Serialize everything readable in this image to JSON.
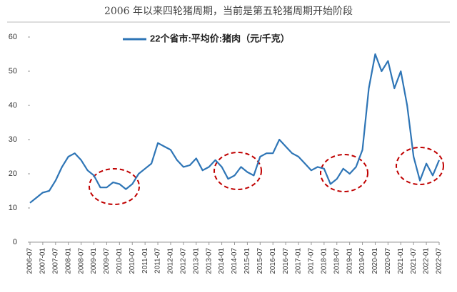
{
  "chart_data": {
    "type": "line",
    "title": "2006 年以来四轮猪周期，当前是第五轮猪周期开始阶段",
    "x": [
      "2006-07",
      "2006-10",
      "2007-01",
      "2007-04",
      "2007-07",
      "2007-10",
      "2008-01",
      "2008-04",
      "2008-07",
      "2008-10",
      "2009-01",
      "2009-04",
      "2009-07",
      "2009-10",
      "2010-01",
      "2010-04",
      "2010-07",
      "2010-10",
      "2011-01",
      "2011-04",
      "2011-07",
      "2011-10",
      "2012-01",
      "2012-04",
      "2012-07",
      "2012-10",
      "2013-01",
      "2013-04",
      "2013-07",
      "2013-10",
      "2014-01",
      "2014-04",
      "2014-07",
      "2014-10",
      "2015-01",
      "2015-04",
      "2015-07",
      "2015-10",
      "2016-01",
      "2016-04",
      "2016-07",
      "2016-10",
      "2017-01",
      "2017-04",
      "2017-07",
      "2017-10",
      "2018-01",
      "2018-04",
      "2018-07",
      "2018-10",
      "2019-01",
      "2019-04",
      "2019-07",
      "2019-10",
      "2020-01",
      "2020-04",
      "2020-07",
      "2020-10",
      "2021-01",
      "2021-04",
      "2021-07",
      "2021-10",
      "2022-01",
      "2022-04",
      "2022-07"
    ],
    "series": [
      {
        "name": "22个省市:平均价:猪肉（元/千克）",
        "color": "#2e75b6",
        "values": [
          11.5,
          13,
          14.5,
          15,
          18,
          22,
          25,
          26,
          24,
          21,
          19.5,
          16,
          16,
          17.5,
          17,
          15.5,
          17,
          20,
          21.5,
          23,
          29,
          28,
          27,
          24,
          22,
          22.5,
          24.5,
          21,
          22,
          24,
          22,
          18.5,
          19.5,
          22,
          20.5,
          19.5,
          25,
          26,
          26,
          30,
          28,
          26,
          25,
          23,
          21,
          22,
          21.5,
          17,
          18.5,
          21.5,
          20,
          22,
          27,
          45,
          55,
          50,
          53,
          45,
          50,
          40,
          25,
          18,
          23,
          19.5,
          24
        ]
      }
    ],
    "xlim": [
      "2006-07",
      "2022-07"
    ],
    "xticks": [
      "2006-07",
      "2007-01",
      "2007-07",
      "2008-01",
      "2008-07",
      "2009-01",
      "2009-07",
      "2010-01",
      "2010-07",
      "2011-01",
      "2011-07",
      "2012-01",
      "2012-07",
      "2013-01",
      "2013-07",
      "2014-01",
      "2014-07",
      "2015-01",
      "2015-07",
      "2016-01",
      "2016-07",
      "2017-01",
      "2017-07",
      "2018-01",
      "2018-07",
      "2019-01",
      "2019-07",
      "2020-01",
      "2020-07",
      "2021-01",
      "2021-07",
      "2022-01",
      "2022-07"
    ],
    "ylim": [
      0,
      60
    ],
    "yticks": [
      0,
      10,
      20,
      30,
      40,
      50,
      60
    ]
  }
}
